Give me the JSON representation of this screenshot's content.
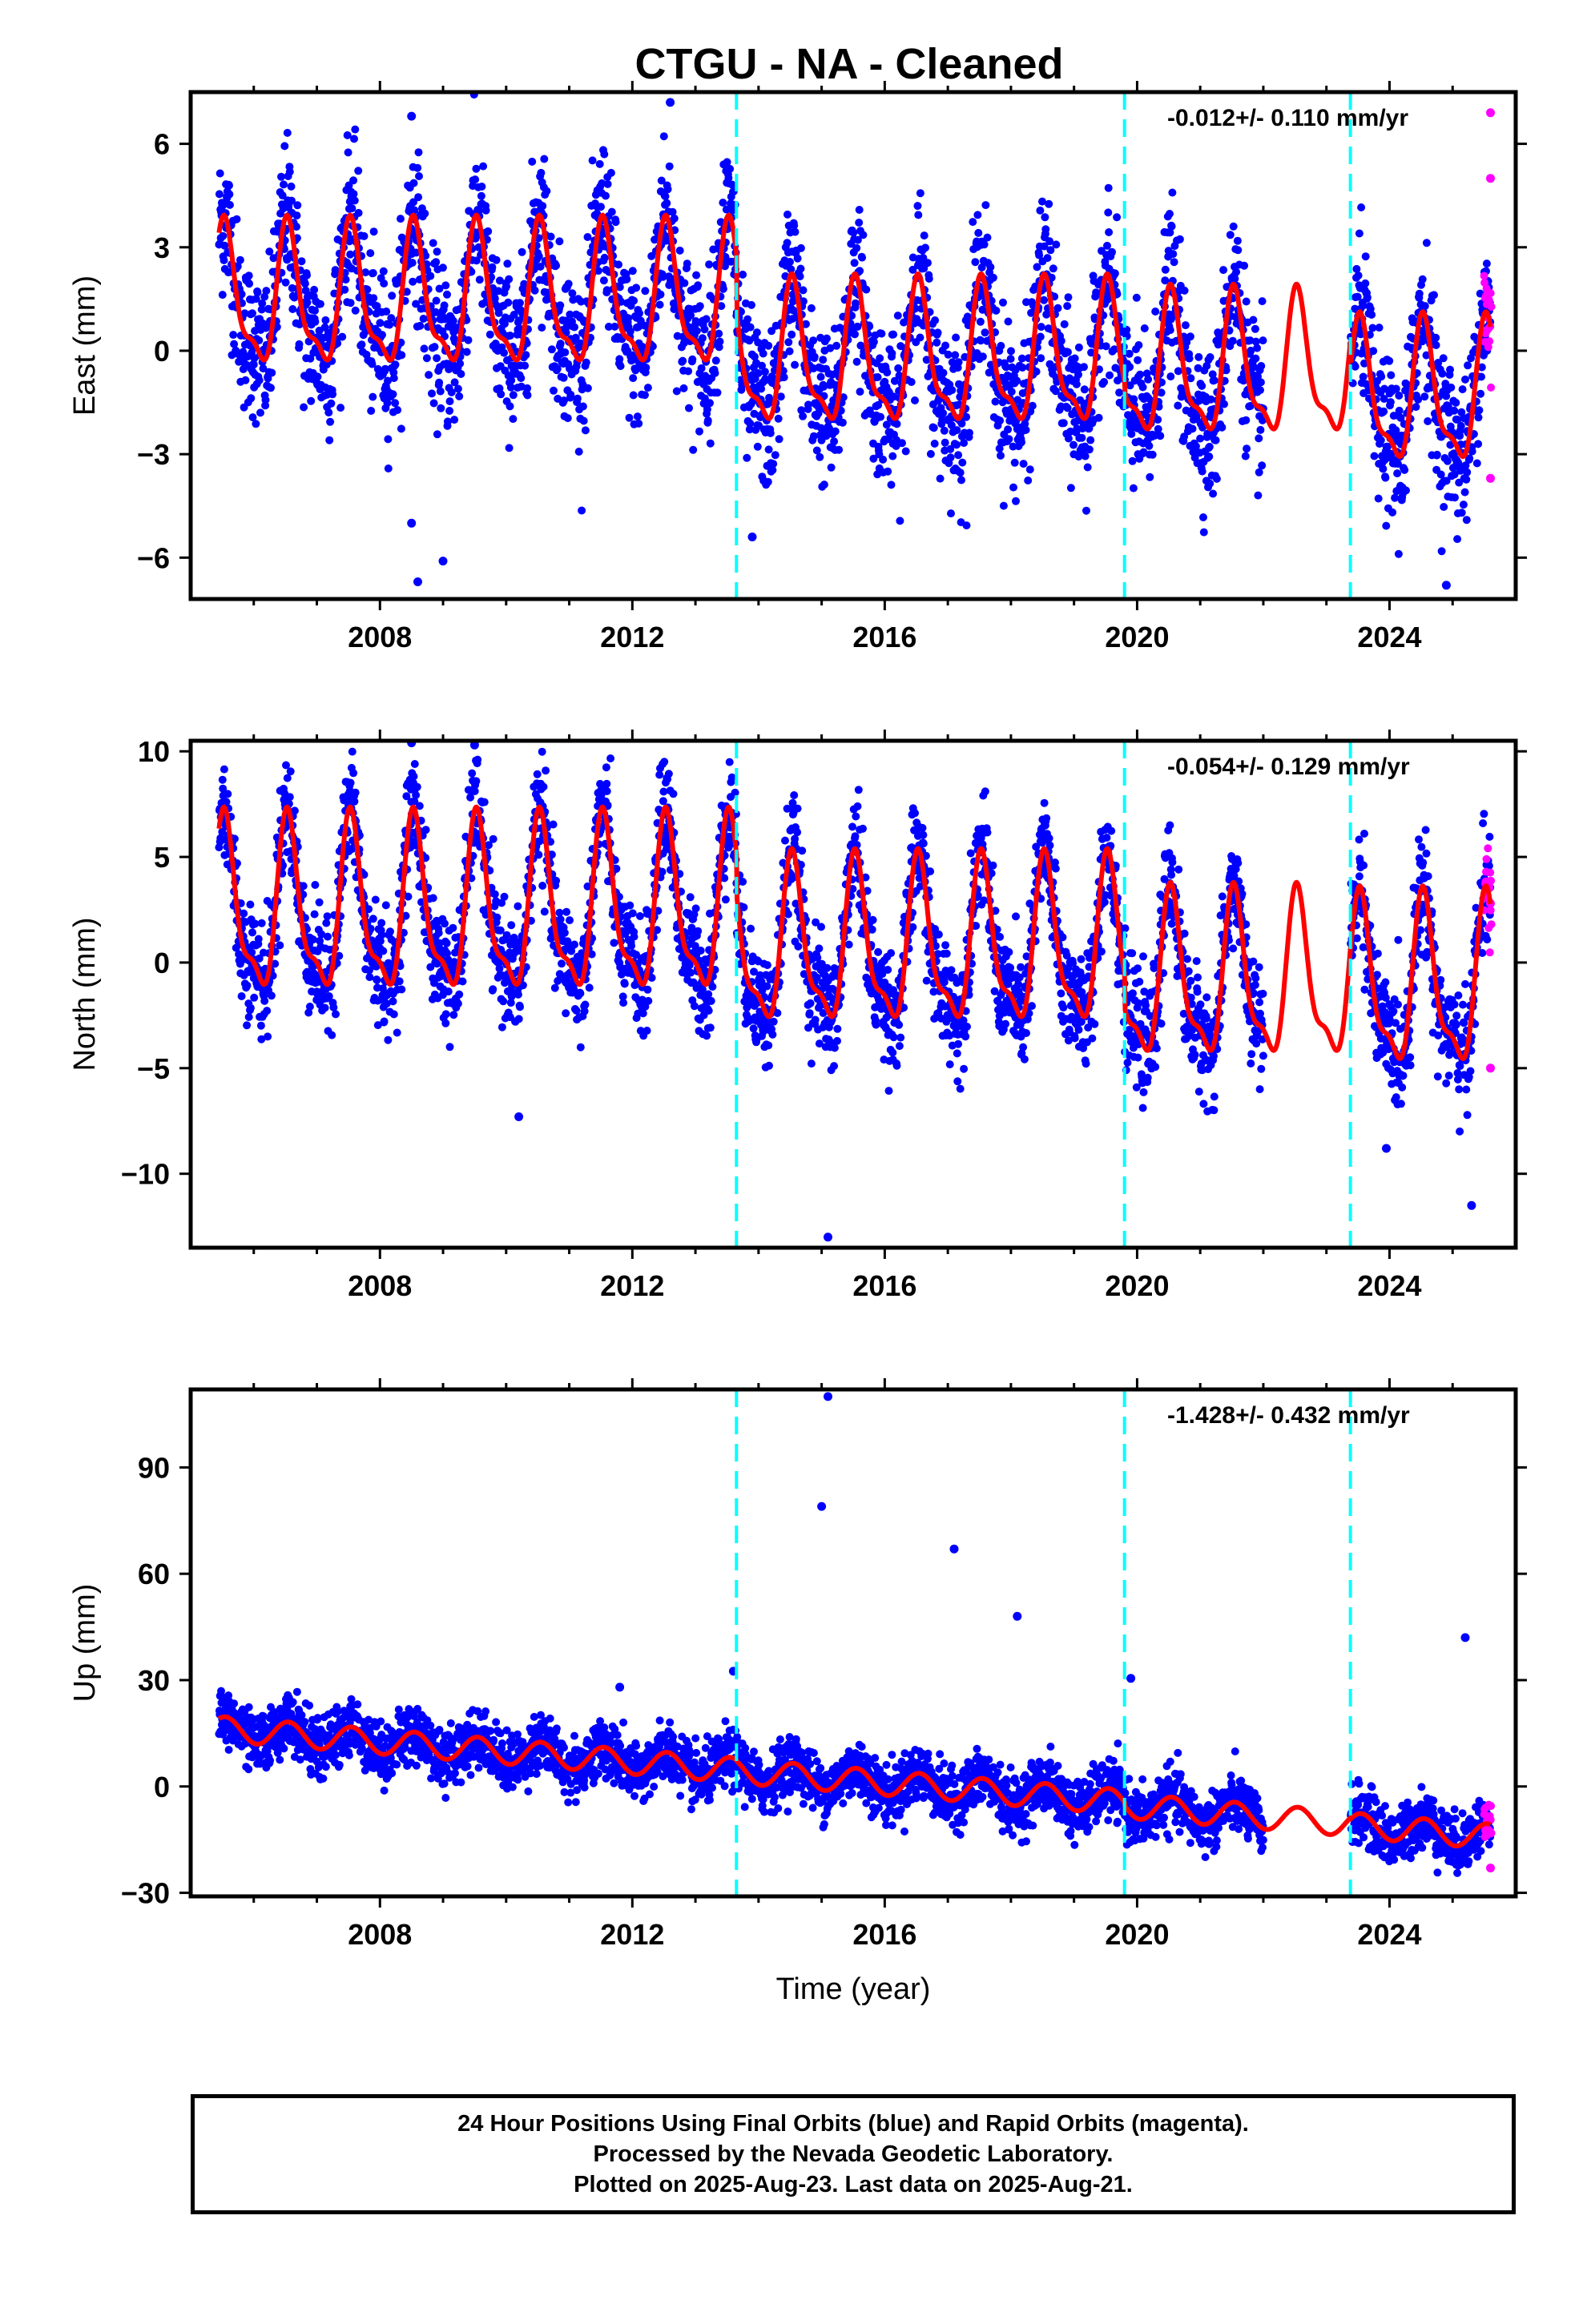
{
  "title": "CTGU  - NA - Cleaned",
  "footer": {
    "line1": "24 Hour Positions Using Final Orbits (blue) and Rapid Orbits (magenta).",
    "line2": "Processed by the Nevada Geodetic Laboratory.",
    "line3": "Plotted on 2025-Aug-23. Last data on 2025-Aug-21."
  },
  "colors": {
    "final_orbits": "#0000ff",
    "rapid_orbits": "#ff00ff",
    "model": "#ff0000",
    "offsets": "#00ffff"
  },
  "chart_data": [
    {
      "type": "scatter",
      "component": "East",
      "ylabel": "East (mm)",
      "xlabel": "",
      "rate": "-0.012+/- 0.110 mm/yr",
      "xlim": [
        2005.0,
        2026.0
      ],
      "ylim": [
        -7.2,
        7.5
      ],
      "x_ticks": [
        2008,
        2012,
        2016,
        2020,
        2024
      ],
      "y_ticks": [
        -6,
        -3,
        0,
        3,
        6
      ],
      "y_tick_labels": [
        "−6",
        "−3",
        "0",
        "3",
        "6"
      ],
      "offsets": [
        2013.65,
        2019.8,
        2023.38
      ],
      "model": {
        "segments": [
          [
            2005.45,
            2022.0
          ],
          [
            2022.0,
            2023.38
          ],
          [
            2023.38,
            2025.6
          ]
        ],
        "annual_amplitude": [
          [
            2005.45,
            2013.65,
            1.9
          ],
          [
            2013.65,
            2023.38,
            1.9
          ],
          [
            2023.38,
            2025.6,
            1.9
          ]
        ],
        "means": [
          [
            2005.45,
            2013.65,
            1.4
          ],
          [
            2013.65,
            2019.8,
            -0.3
          ],
          [
            2019.8,
            2023.38,
            -0.6
          ],
          [
            2023.38,
            2025.6,
            -1.4
          ]
        ]
      },
      "scatter": {
        "range": [
          2005.45,
          2025.6
        ],
        "gap": [
          2022.0,
          2023.38
        ],
        "noise": 1.1,
        "rapid_range": [
          2025.5,
          2025.62
        ]
      },
      "outliers": [
        [
          2008.5,
          6.8
        ],
        [
          2012.6,
          7.2
        ],
        [
          2008.6,
          -6.7
        ],
        [
          2009.0,
          -6.1
        ],
        [
          2008.5,
          -5.0
        ],
        [
          2024.9,
          -6.8
        ],
        [
          2025.6,
          6.9
        ],
        [
          2025.6,
          5.0
        ],
        [
          2025.6,
          -3.7
        ],
        [
          2013.9,
          -5.4
        ]
      ]
    },
    {
      "type": "scatter",
      "component": "North",
      "ylabel": "North (mm)",
      "xlabel": "",
      "rate": "-0.054+/- 0.129 mm/yr",
      "xlim": [
        2005.0,
        2026.0
      ],
      "ylim": [
        -13.5,
        10.5
      ],
      "x_ticks": [
        2008,
        2012,
        2016,
        2020,
        2024
      ],
      "y_ticks": [
        -10,
        -5,
        0,
        5,
        10
      ],
      "y_tick_labels": [
        "−10",
        "−5",
        "0",
        "5",
        "10"
      ],
      "offsets": [
        2013.65,
        2019.8,
        2023.38
      ],
      "model": {
        "segments": [
          [
            2005.45,
            2022.0
          ],
          [
            2022.0,
            2023.38
          ],
          [
            2023.38,
            2025.6
          ]
        ],
        "annual_amplitude": [
          [
            2005.45,
            2013.65,
            3.8
          ],
          [
            2013.65,
            2023.38,
            3.6
          ],
          [
            2023.38,
            2025.6,
            3.7
          ]
        ],
        "means": [
          [
            2005.45,
            2013.65,
            2.3
          ],
          [
            2013.65,
            2019.8,
            0.6
          ],
          [
            2019.8,
            2023.38,
            -1.0
          ],
          [
            2023.38,
            2025.6,
            -1.3
          ]
        ]
      },
      "scatter": {
        "range": [
          2005.45,
          2025.6
        ],
        "gap": [
          2022.0,
          2023.38
        ],
        "noise": 1.3,
        "rapid_range": [
          2025.5,
          2025.62
        ]
      },
      "outliers": [
        [
          2008.5,
          10.4
        ],
        [
          2009.5,
          10.3
        ],
        [
          2015.1,
          -13.0
        ],
        [
          2025.3,
          -11.5
        ],
        [
          2010.2,
          -7.3
        ],
        [
          2025.6,
          2.8
        ],
        [
          2025.6,
          -5.0
        ],
        [
          2023.95,
          -8.8
        ]
      ]
    },
    {
      "type": "scatter",
      "component": "Up",
      "ylabel": "Up (mm)",
      "xlabel": "Time (year)",
      "rate": "-1.428+/- 0.432 mm/yr",
      "xlim": [
        2005.0,
        2026.0
      ],
      "ylim": [
        -31,
        112
      ],
      "x_ticks": [
        2008,
        2012,
        2016,
        2020,
        2024
      ],
      "y_ticks": [
        -30,
        0,
        30,
        60,
        90
      ],
      "y_tick_labels": [
        "−30",
        "0",
        "30",
        "60",
        "90"
      ],
      "offsets": [
        2013.65,
        2019.8,
        2023.38
      ],
      "model": {
        "segments": [
          [
            2005.45,
            2022.0
          ],
          [
            2022.0,
            2023.38
          ],
          [
            2023.38,
            2025.6
          ]
        ],
        "annual_amplitude": [
          [
            2005.45,
            2013.65,
            3.5
          ],
          [
            2013.65,
            2023.38,
            3.5
          ],
          [
            2023.38,
            2025.6,
            3.5
          ]
        ],
        "means": [
          [
            2005.45,
            2013.65,
            10.5
          ],
          [
            2013.65,
            2019.8,
            0.0
          ],
          [
            2019.8,
            2023.38,
            -8.0
          ],
          [
            2023.38,
            2025.6,
            -12.5
          ]
        ],
        "trend": -1.428
      },
      "scatter": {
        "range": [
          2005.45,
          2025.6
        ],
        "gap": [
          2022.0,
          2023.38
        ],
        "noise": 4.0,
        "rapid_range": [
          2025.5,
          2025.62
        ]
      },
      "outliers": [
        [
          2015.1,
          110
        ],
        [
          2015.0,
          79
        ],
        [
          2017.1,
          67
        ],
        [
          2018.1,
          48
        ],
        [
          2025.2,
          42
        ],
        [
          2019.9,
          30.5
        ],
        [
          2013.6,
          32.5
        ],
        [
          2011.8,
          28
        ],
        [
          2025.6,
          -23
        ]
      ]
    }
  ]
}
